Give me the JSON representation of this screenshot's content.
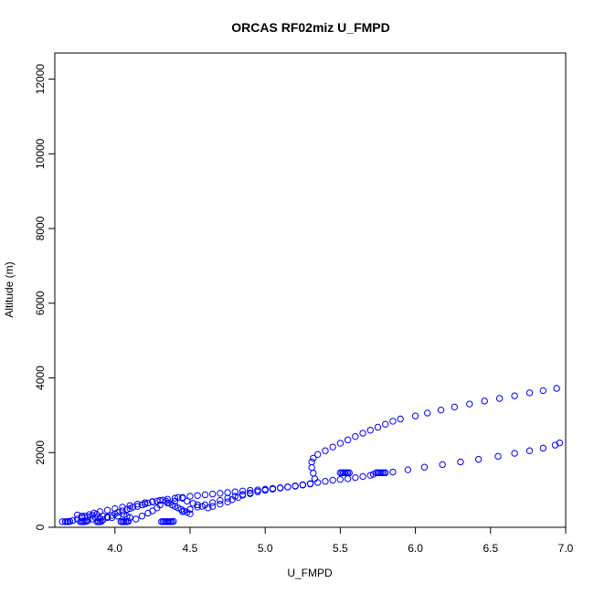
{
  "chart_data": {
    "type": "scatter",
    "title": "ORCAS RF02miz U_FMPD",
    "xlabel": "U_FMPD",
    "ylabel": "Altitude (m)",
    "xlim": [
      3.6,
      7.0
    ],
    "ylim": [
      0,
      12700
    ],
    "x_ticks": [
      4.0,
      4.5,
      5.0,
      5.5,
      6.0,
      6.5,
      7.0
    ],
    "x_tick_labels": [
      "4.0",
      "4.5",
      "5.0",
      "5.5",
      "6.0",
      "6.5",
      "7.0"
    ],
    "y_ticks": [
      0,
      2000,
      4000,
      6000,
      8000,
      10000,
      12000
    ],
    "y_tick_labels": [
      "0",
      "2000",
      "4000",
      "6000",
      "8000",
      "10000",
      "12000"
    ],
    "grid": false,
    "legend": "none",
    "marker": "open-circle",
    "series": [
      {
        "color": "#0000ff",
        "points": [
          [
            3.65,
            150
          ],
          [
            3.67,
            150
          ],
          [
            3.68,
            150
          ],
          [
            3.69,
            150
          ],
          [
            3.7,
            160
          ],
          [
            3.72,
            180
          ],
          [
            3.75,
            220
          ],
          [
            3.78,
            260
          ],
          [
            3.8,
            300
          ],
          [
            3.83,
            340
          ],
          [
            3.86,
            380
          ],
          [
            3.9,
            420
          ],
          [
            3.95,
            460
          ],
          [
            4.0,
            500
          ],
          [
            4.05,
            540
          ],
          [
            4.1,
            580
          ],
          [
            4.15,
            620
          ],
          [
            4.2,
            660
          ],
          [
            4.25,
            690
          ],
          [
            4.3,
            720
          ],
          [
            4.35,
            750
          ],
          [
            4.4,
            780
          ],
          [
            4.45,
            800
          ],
          [
            4.5,
            830
          ],
          [
            4.55,
            850
          ],
          [
            4.6,
            870
          ],
          [
            4.65,
            890
          ],
          [
            4.7,
            910
          ],
          [
            4.75,
            930
          ],
          [
            4.8,
            950
          ],
          [
            4.85,
            970
          ],
          [
            4.9,
            990
          ],
          [
            4.95,
            1000
          ],
          [
            5.0,
            1020
          ],
          [
            5.05,
            1040
          ],
          [
            5.1,
            1060
          ],
          [
            5.15,
            1080
          ],
          [
            5.2,
            1100
          ],
          [
            5.25,
            1130
          ],
          [
            5.3,
            1160
          ],
          [
            5.33,
            1300
          ],
          [
            5.32,
            1450
          ],
          [
            5.31,
            1600
          ],
          [
            5.31,
            1750
          ],
          [
            5.32,
            1850
          ],
          [
            5.35,
            1950
          ],
          [
            5.4,
            2050
          ],
          [
            5.45,
            2150
          ],
          [
            5.5,
            2250
          ],
          [
            5.55,
            2340
          ],
          [
            5.6,
            2430
          ],
          [
            5.65,
            2520
          ],
          [
            5.7,
            2600
          ],
          [
            5.75,
            2680
          ],
          [
            5.8,
            2760
          ],
          [
            5.85,
            2840
          ],
          [
            5.9,
            2900
          ],
          [
            6.0,
            2980
          ],
          [
            6.08,
            3060
          ],
          [
            6.17,
            3140
          ],
          [
            6.26,
            3220
          ],
          [
            6.36,
            3300
          ],
          [
            6.46,
            3380
          ],
          [
            6.56,
            3450
          ],
          [
            6.66,
            3520
          ],
          [
            6.76,
            3600
          ],
          [
            6.85,
            3660
          ],
          [
            6.94,
            3720
          ],
          [
            3.77,
            150
          ],
          [
            3.78,
            150
          ],
          [
            3.79,
            150
          ],
          [
            3.8,
            150
          ],
          [
            3.81,
            160
          ],
          [
            3.82,
            180
          ],
          [
            3.85,
            220
          ],
          [
            3.87,
            260
          ],
          [
            3.9,
            240
          ],
          [
            3.92,
            200
          ],
          [
            3.95,
            260
          ],
          [
            3.98,
            320
          ],
          [
            4.0,
            360
          ],
          [
            4.02,
            400
          ],
          [
            4.05,
            440
          ],
          [
            4.08,
            480
          ],
          [
            4.1,
            500
          ],
          [
            4.12,
            540
          ],
          [
            4.15,
            560
          ],
          [
            4.18,
            600
          ],
          [
            4.2,
            620
          ],
          [
            4.22,
            650
          ],
          [
            4.25,
            680
          ],
          [
            4.28,
            700
          ],
          [
            4.3,
            720
          ],
          [
            4.32,
            730
          ],
          [
            4.34,
            700
          ],
          [
            4.36,
            650
          ],
          [
            4.38,
            600
          ],
          [
            4.4,
            560
          ],
          [
            4.42,
            520
          ],
          [
            4.44,
            480
          ],
          [
            4.46,
            440
          ],
          [
            4.48,
            400
          ],
          [
            4.5,
            360
          ],
          [
            3.88,
            150
          ],
          [
            3.89,
            150
          ],
          [
            3.9,
            150
          ],
          [
            3.91,
            160
          ],
          [
            4.04,
            150
          ],
          [
            4.05,
            150
          ],
          [
            4.06,
            150
          ],
          [
            4.07,
            150
          ],
          [
            4.08,
            150
          ],
          [
            4.09,
            160
          ],
          [
            4.31,
            150
          ],
          [
            4.32,
            150
          ],
          [
            4.33,
            150
          ],
          [
            4.34,
            150
          ],
          [
            4.35,
            150
          ],
          [
            4.36,
            150
          ],
          [
            4.37,
            150
          ],
          [
            4.38,
            150
          ],
          [
            4.39,
            160
          ],
          [
            3.75,
            330
          ],
          [
            3.78,
            300
          ],
          [
            3.82,
            280
          ],
          [
            3.85,
            320
          ],
          [
            3.88,
            350
          ],
          [
            3.92,
            300
          ],
          [
            3.95,
            280
          ],
          [
            3.98,
            260
          ],
          [
            4.02,
            300
          ],
          [
            4.06,
            340
          ],
          [
            4.08,
            300
          ],
          [
            4.1,
            260
          ],
          [
            4.14,
            220
          ],
          [
            4.18,
            300
          ],
          [
            4.22,
            380
          ],
          [
            4.25,
            440
          ],
          [
            4.28,
            520
          ],
          [
            4.3,
            600
          ],
          [
            4.35,
            650
          ],
          [
            4.4,
            700
          ],
          [
            4.42,
            800
          ],
          [
            4.45,
            780
          ],
          [
            4.48,
            700
          ],
          [
            4.52,
            640
          ],
          [
            4.55,
            600
          ],
          [
            4.58,
            560
          ],
          [
            4.62,
            520
          ],
          [
            4.65,
            560
          ],
          [
            4.7,
            620
          ],
          [
            4.75,
            680
          ],
          [
            4.78,
            740
          ],
          [
            4.82,
            800
          ],
          [
            4.85,
            860
          ],
          [
            4.9,
            900
          ],
          [
            4.95,
            950
          ],
          [
            5.0,
            1000
          ],
          [
            4.45,
            420
          ],
          [
            4.5,
            480
          ],
          [
            4.55,
            540
          ],
          [
            4.6,
            600
          ],
          [
            4.65,
            660
          ],
          [
            4.7,
            720
          ],
          [
            4.75,
            780
          ],
          [
            4.8,
            830
          ],
          [
            4.85,
            880
          ],
          [
            4.9,
            920
          ],
          [
            4.95,
            960
          ],
          [
            5.0,
            990
          ],
          [
            5.05,
            1020
          ],
          [
            5.1,
            1050
          ],
          [
            5.15,
            1080
          ],
          [
            5.2,
            1110
          ],
          [
            5.25,
            1140
          ],
          [
            5.3,
            1170
          ],
          [
            5.35,
            1200
          ],
          [
            5.4,
            1230
          ],
          [
            5.45,
            1260
          ],
          [
            5.5,
            1280
          ],
          [
            5.55,
            1300
          ],
          [
            5.6,
            1330
          ],
          [
            5.65,
            1360
          ],
          [
            5.7,
            1390
          ],
          [
            5.72,
            1420
          ],
          [
            5.52,
            1460
          ],
          [
            5.53,
            1460
          ],
          [
            5.54,
            1460
          ],
          [
            5.55,
            1460
          ],
          [
            5.56,
            1460
          ],
          [
            5.5,
            1460
          ],
          [
            5.51,
            1460
          ],
          [
            5.74,
            1460
          ],
          [
            5.75,
            1460
          ],
          [
            5.76,
            1460
          ],
          [
            5.77,
            1460
          ],
          [
            5.78,
            1460
          ],
          [
            5.79,
            1460
          ],
          [
            5.8,
            1460
          ],
          [
            5.85,
            1480
          ],
          [
            5.95,
            1540
          ],
          [
            6.06,
            1610
          ],
          [
            6.18,
            1680
          ],
          [
            6.3,
            1750
          ],
          [
            6.42,
            1820
          ],
          [
            6.55,
            1900
          ],
          [
            6.66,
            1980
          ],
          [
            6.76,
            2050
          ],
          [
            6.85,
            2120
          ],
          [
            6.93,
            2200
          ],
          [
            6.96,
            2260
          ]
        ]
      }
    ]
  }
}
